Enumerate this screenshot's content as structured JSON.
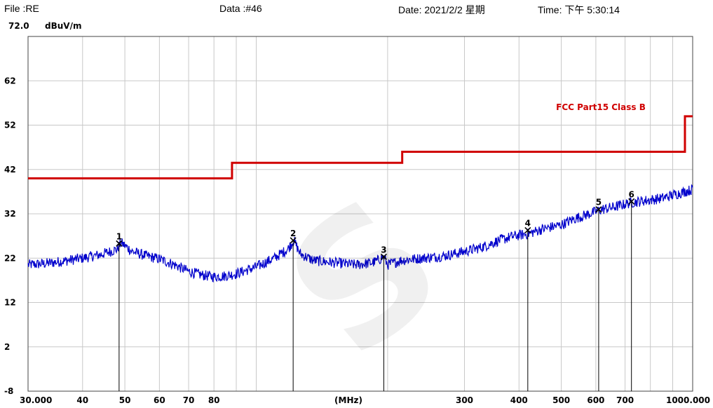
{
  "header": {
    "file": "File :RE",
    "data": "Data :#46",
    "date": "Date: 2021/2/2 星期",
    "time": "Time: 下午 5:30:14"
  },
  "chart_data": {
    "type": "line",
    "title": "",
    "ylabel": "dBuV/m",
    "xlabel": "(MHz)",
    "x_scale": "log",
    "xlim": [
      30,
      1000
    ],
    "ylim": [
      -8,
      72
    ],
    "y_top_label": "72.0",
    "y_ticks": [
      "62",
      "52",
      "42",
      "32",
      "22",
      "12",
      "2",
      "-8"
    ],
    "y_tick_values": [
      62,
      52,
      42,
      32,
      22,
      12,
      2,
      -8
    ],
    "x_ticks": [
      "30.000",
      "40",
      "50",
      "60",
      "70",
      "80",
      "300",
      "400",
      "500",
      "600",
      "700",
      "1000.000"
    ],
    "x_tick_values": [
      30,
      40,
      50,
      60,
      70,
      80,
      300,
      400,
      500,
      600,
      700,
      1000
    ],
    "grid": true,
    "limit_line": {
      "name": "FCC Part15 Class B",
      "color": "#d00000",
      "segments": [
        {
          "from": 30,
          "to": 88,
          "value": 40.0
        },
        {
          "from": 88,
          "to": 216,
          "value": 43.5
        },
        {
          "from": 216,
          "to": 960,
          "value": 46.0
        },
        {
          "from": 960,
          "to": 1000,
          "value": 54.0
        }
      ]
    },
    "trace": {
      "color": "#0000cc",
      "points": [
        [
          30,
          20.5
        ],
        [
          33,
          20.8
        ],
        [
          36,
          21.3
        ],
        [
          40,
          22.0
        ],
        [
          44,
          22.8
        ],
        [
          48,
          24.0
        ],
        [
          49,
          25.5
        ],
        [
          52,
          23.5
        ],
        [
          56,
          22.5
        ],
        [
          60,
          21.8
        ],
        [
          65,
          20.5
        ],
        [
          70,
          19.0
        ],
        [
          75,
          18.2
        ],
        [
          80,
          17.8
        ],
        [
          85,
          18.0
        ],
        [
          90,
          18.5
        ],
        [
          100,
          20.0
        ],
        [
          110,
          22.0
        ],
        [
          118,
          24.0
        ],
        [
          122,
          26.0
        ],
        [
          126,
          23.0
        ],
        [
          135,
          21.5
        ],
        [
          150,
          21.0
        ],
        [
          170,
          20.5
        ],
        [
          185,
          21.0
        ],
        [
          190,
          21.5
        ],
        [
          196,
          22.3
        ],
        [
          200,
          20.5
        ],
        [
          215,
          21.5
        ],
        [
          240,
          22.0
        ],
        [
          270,
          22.5
        ],
        [
          300,
          23.5
        ],
        [
          330,
          24.5
        ],
        [
          360,
          26.0
        ],
        [
          390,
          27.0
        ],
        [
          420,
          27.5
        ],
        [
          450,
          28.5
        ],
        [
          500,
          29.5
        ],
        [
          540,
          31.0
        ],
        [
          580,
          32.0
        ],
        [
          620,
          33.0
        ],
        [
          660,
          33.5
        ],
        [
          720,
          34.5
        ],
        [
          780,
          35.0
        ],
        [
          850,
          35.5
        ],
        [
          920,
          36.5
        ],
        [
          1000,
          37.5
        ]
      ]
    },
    "markers": [
      {
        "label": "1",
        "x": 48.5,
        "y": 25.3
      },
      {
        "label": "2",
        "x": 121.5,
        "y": 26.0
      },
      {
        "label": "3",
        "x": 196.0,
        "y": 22.3
      },
      {
        "label": "4",
        "x": 419.0,
        "y": 28.3
      },
      {
        "label": "5",
        "x": 609.0,
        "y": 33.0
      },
      {
        "label": "6",
        "x": 724.0,
        "y": 34.8
      }
    ]
  }
}
